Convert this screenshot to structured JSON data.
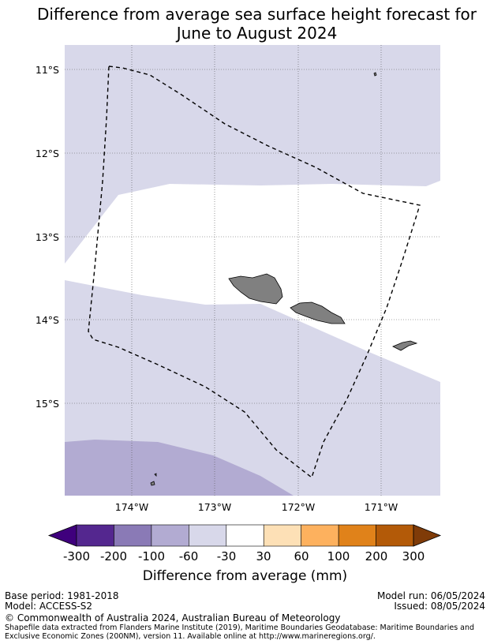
{
  "title_line1": "Difference from average sea surface height forecast for",
  "title_line2": "June to August 2024",
  "map": {
    "lat_labels": [
      "11°S",
      "12°S",
      "13°S",
      "14°S",
      "15°S"
    ],
    "lon_labels": [
      "174°W",
      "173°W",
      "172°W",
      "171°W"
    ],
    "eez_boundary": "dashed"
  },
  "colorbar": {
    "title": "Difference from average (mm)",
    "tick_labels": [
      "-300",
      "-200",
      "-100",
      "-60",
      "-30",
      "30",
      "60",
      "100",
      "200",
      "300"
    ],
    "colors": [
      "#3f007d",
      "#54278f",
      "#8a7ab6",
      "#b2abd2",
      "#d8d8ea",
      "#ffffff",
      "#fde0b6",
      "#fdb15e",
      "#e0821a",
      "#b35a08",
      "#7f3b08"
    ]
  },
  "footer": {
    "base_period": "Base period: 1981-2018",
    "model": "Model: ACCESS-S2",
    "model_run": "Model run: 06/05/2024",
    "issued": "Issued: 08/05/2024",
    "copyright": "© Commonwealth of Australia 2024, Australian Bureau of Meteorology",
    "shapefile_1": "Shapefile data extracted from Flanders Marine Institute (2019), Maritime Boundaries Geodatabase: Maritime Boundaries and",
    "shapefile_2": "Exclusive Economic Zones (200NM), version 11. Available online at http://www.marineregions.org/."
  }
}
